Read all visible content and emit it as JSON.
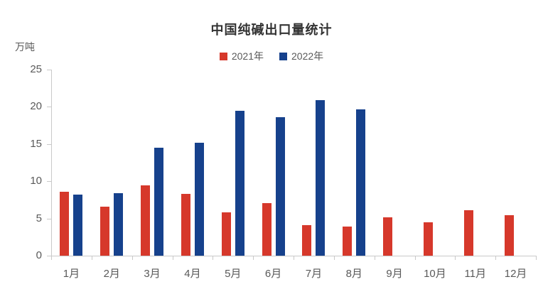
{
  "chart_data": {
    "type": "bar",
    "title": "中国纯碱出口量统计",
    "unit_label": "万吨",
    "categories": [
      "1月",
      "2月",
      "3月",
      "4月",
      "5月",
      "6月",
      "7月",
      "8月",
      "9月",
      "10月",
      "11月",
      "12月"
    ],
    "series": [
      {
        "name": "2021年",
        "color": "#d6382b",
        "values": [
          8.6,
          6.6,
          9.4,
          8.3,
          5.8,
          7.1,
          4.1,
          3.9,
          5.2,
          4.5,
          6.1,
          5.4
        ]
      },
      {
        "name": "2022年",
        "color": "#16418c",
        "values": [
          8.2,
          8.4,
          14.5,
          15.2,
          19.5,
          18.6,
          20.9,
          19.7,
          null,
          null,
          null,
          null
        ]
      }
    ],
    "ylim": [
      0,
      25
    ],
    "yticks": [
      0,
      5,
      10,
      15,
      20,
      25
    ],
    "grid": false,
    "legend_position": "top",
    "colors": {
      "axis": "#c9c9c9",
      "tick_label": "#595959",
      "title": "#333333"
    }
  }
}
